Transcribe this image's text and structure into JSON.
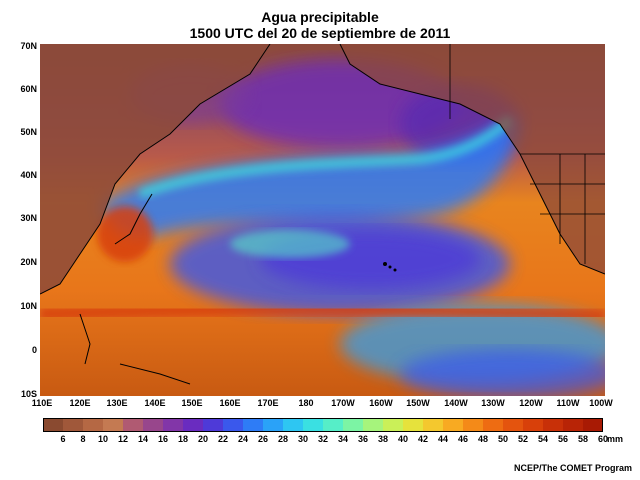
{
  "title_line1": "Agua precipitable",
  "title_line2": "1500 UTC del 20 de septiembre de 2011",
  "lat_labels": [
    "70N",
    "60N",
    "50N",
    "40N",
    "30N",
    "20N",
    "10N",
    "0",
    "10S"
  ],
  "lon_labels": [
    "110E",
    "120E",
    "130E",
    "140E",
    "150E",
    "160E",
    "170E",
    "180",
    "170W",
    "160W",
    "150W",
    "140W",
    "130W",
    "120W",
    "110W",
    "100W"
  ],
  "colorbar": {
    "ticks": [
      "6",
      "8",
      "10",
      "12",
      "14",
      "16",
      "18",
      "20",
      "22",
      "24",
      "26",
      "28",
      "30",
      "32",
      "34",
      "36",
      "38",
      "40",
      "42",
      "44",
      "46",
      "48",
      "50",
      "52",
      "54",
      "56",
      "58",
      "60"
    ],
    "unit": "mm",
    "colors": [
      "#8a4a30",
      "#a0583a",
      "#b56844",
      "#c47a52",
      "#b05a72",
      "#98468c",
      "#8236a8",
      "#6a2cc0",
      "#4e3ad8",
      "#3a58ec",
      "#2e7cf6",
      "#2aa2f8",
      "#2ec6f2",
      "#3ae0e2",
      "#56eec8",
      "#7cf4a4",
      "#a6f47c",
      "#caf058",
      "#e6e23c",
      "#f4c82e",
      "#f8aa22",
      "#f48a18",
      "#ee6c12",
      "#e4540e",
      "#d8400a",
      "#c83008",
      "#b82406",
      "#a81a04"
    ]
  },
  "credit": "NCEP/The COMET Program",
  "colors": {
    "ocean_moist": "#e8761a",
    "dry_land": "#8c4a3a",
    "moist_band": "#38c8f0",
    "very_dry": "#6a2cc0"
  }
}
